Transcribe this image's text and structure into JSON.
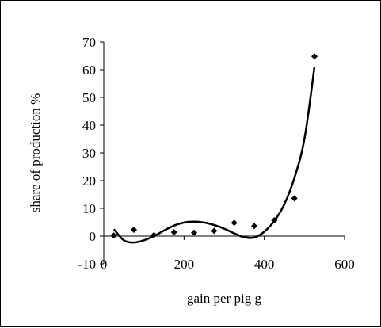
{
  "chart_data": {
    "type": "scatter",
    "xlabel": "gain per pig g",
    "ylabel": "share of production %",
    "xlim": [
      0,
      600
    ],
    "ylim": [
      -10,
      70
    ],
    "x_ticks": [
      "0",
      "200",
      "400",
      "600"
    ],
    "y_ticks": [
      "-10",
      "0",
      "10",
      "20",
      "30",
      "40",
      "50",
      "60",
      "70"
    ],
    "grid": false,
    "legend": "none",
    "series": [
      {
        "kind": "points",
        "marker": "diamond",
        "color": "#000000",
        "x": [
          25,
          75,
          125,
          175,
          225,
          275,
          325,
          375,
          425,
          475,
          525
        ],
        "y": [
          0.2,
          2.3,
          0.4,
          1.4,
          1.2,
          1.9,
          4.8,
          3.6,
          5.7,
          13.6,
          64.8
        ]
      },
      {
        "kind": "trendline",
        "color": "#000000",
        "x": [
          25,
          50,
          75,
          100,
          125,
          150,
          175,
          200,
          225,
          250,
          275,
          300,
          325,
          350,
          375,
          400,
          425,
          450,
          475,
          500,
          525
        ],
        "y": [
          2.5,
          -1.5,
          -2.3,
          -1.5,
          0.0,
          2.0,
          3.8,
          4.9,
          5.2,
          4.9,
          4.0,
          2.7,
          1.0,
          -0.4,
          -0.5,
          1.6,
          5.5,
          11.5,
          21.0,
          35.0,
          61.0
        ]
      }
    ]
  }
}
